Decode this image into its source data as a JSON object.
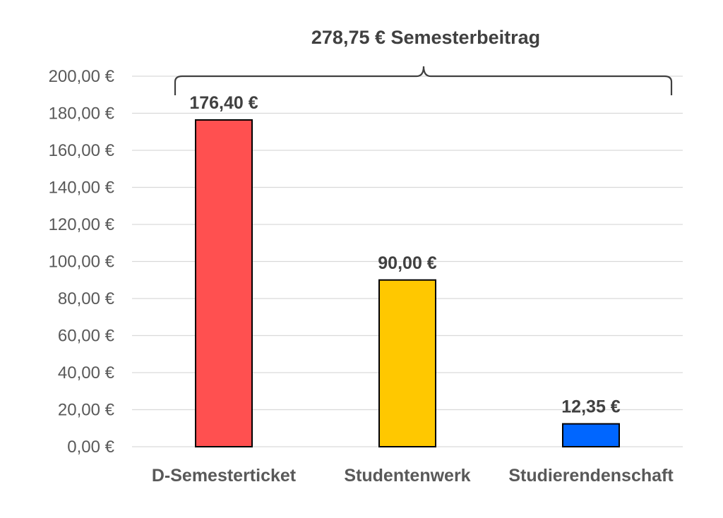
{
  "chart_data": {
    "type": "bar",
    "title": "278,75 € Semesterbeitrag",
    "xlabel": "",
    "ylabel": "",
    "ylim": [
      0,
      200
    ],
    "ytick_step": 20,
    "grid": true,
    "legend": "none",
    "categories": [
      "D-Semesterticket",
      "Studentenwerk",
      "Studierendenschaft"
    ],
    "values": [
      176.4,
      90.0,
      12.35
    ],
    "data_labels": [
      "176,40 €",
      "90,00 €",
      "12,35 €"
    ],
    "yticks": [
      "0,00 €",
      "20,00 €",
      "40,00 €",
      "60,00 €",
      "80,00 €",
      "100,00 €",
      "120,00 €",
      "140,00 €",
      "160,00 €",
      "180,00 €",
      "200,00 €"
    ],
    "colors": [
      "#ff5050",
      "#ffc800",
      "#0066ff"
    ]
  }
}
